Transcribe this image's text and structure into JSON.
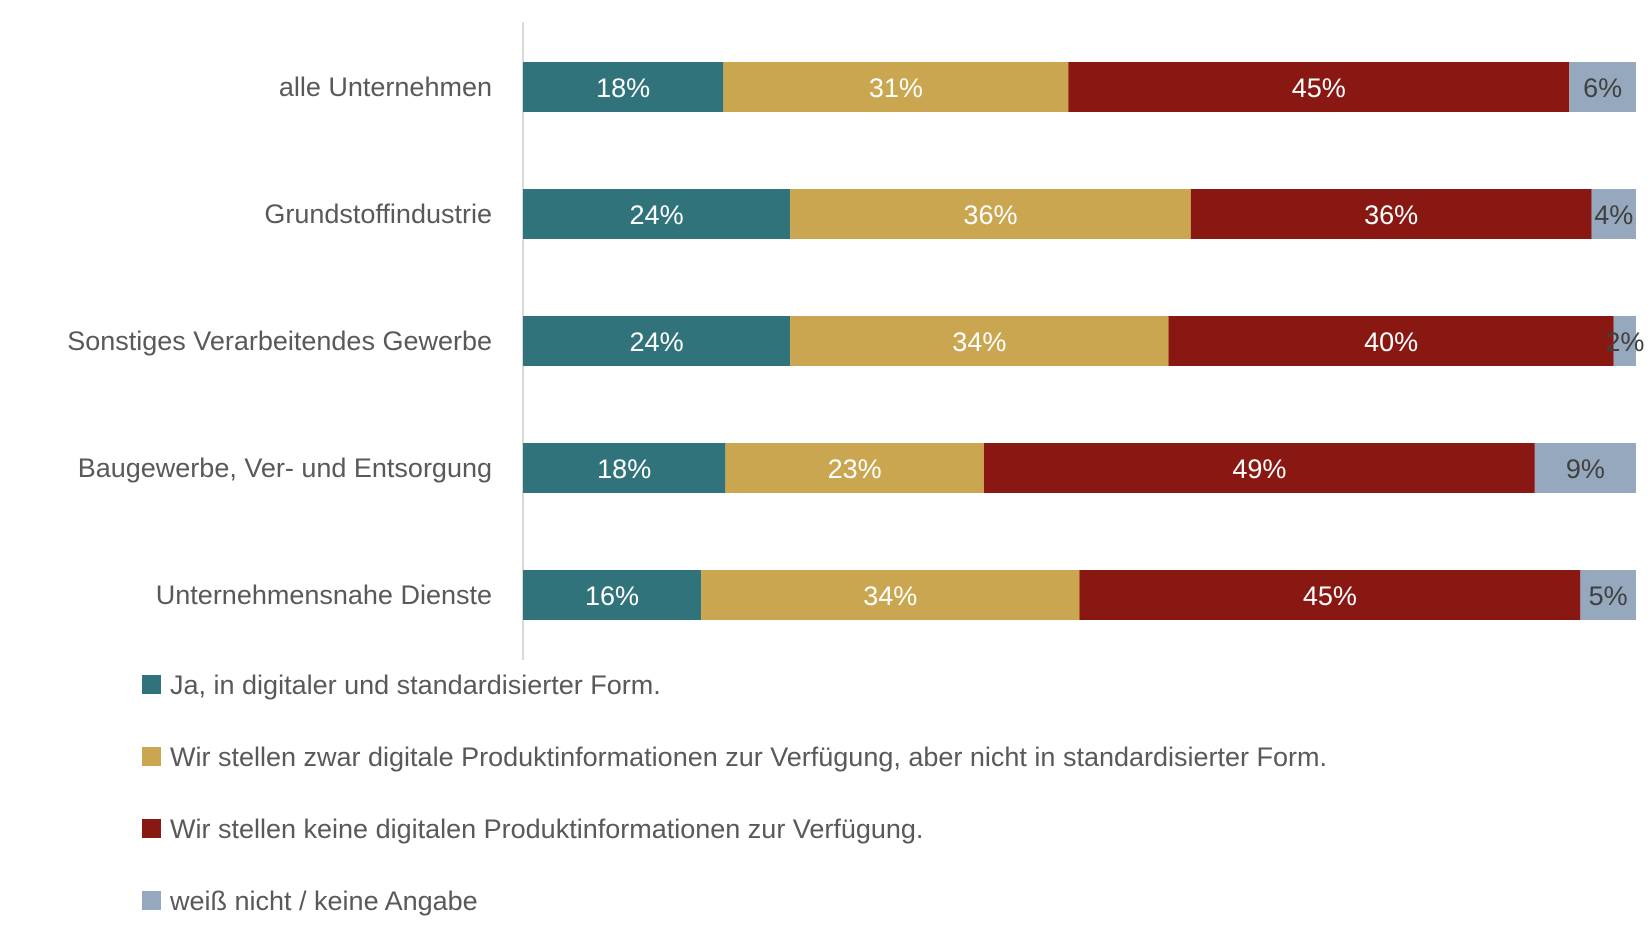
{
  "chart_data": {
    "type": "bar",
    "orientation": "horizontal",
    "stacked": true,
    "percent_scale": true,
    "title": "",
    "xlabel": "",
    "ylabel": "",
    "xlim": [
      0,
      100
    ],
    "grid": false,
    "legend_position": "bottom",
    "categories": [
      "alle Unternehmen",
      "Grundstoffindustrie",
      "Sonstiges Verarbeitendes Gewerbe",
      "Baugewerbe, Ver- und Entsorgung",
      "Unternehmensnahe Dienste"
    ],
    "series": [
      {
        "name": "Ja, in digitaler und standardisierter Form.",
        "color": "#31737B",
        "label_color": "#ffffff",
        "values": [
          18,
          24,
          24,
          18,
          16
        ],
        "labels": [
          "18%",
          "24%",
          "24%",
          "18%",
          "16%"
        ]
      },
      {
        "name": "Wir stellen zwar digitale Produktinformationen zur Verfügung, aber nicht in standardisierter Form.",
        "color": "#C9A64F",
        "label_color": "#ffffff",
        "values": [
          31,
          36,
          34,
          23,
          34
        ],
        "labels": [
          "31%",
          "36%",
          "34%",
          "23%",
          "34%"
        ]
      },
      {
        "name": "Wir stellen keine digitalen Produktinformationen zur Verfügung.",
        "color": "#8A1812",
        "label_color": "#ffffff",
        "values": [
          45,
          36,
          40,
          49,
          45
        ],
        "labels": [
          "45%",
          "36%",
          "40%",
          "49%",
          "45%"
        ]
      },
      {
        "name": "weiß nicht / keine Angabe",
        "color": "#96A8BD",
        "label_color": "#404040",
        "values": [
          6,
          4,
          2,
          9,
          5
        ],
        "labels": [
          "6%",
          "4%",
          "2%",
          "9%",
          "5%"
        ]
      }
    ]
  }
}
